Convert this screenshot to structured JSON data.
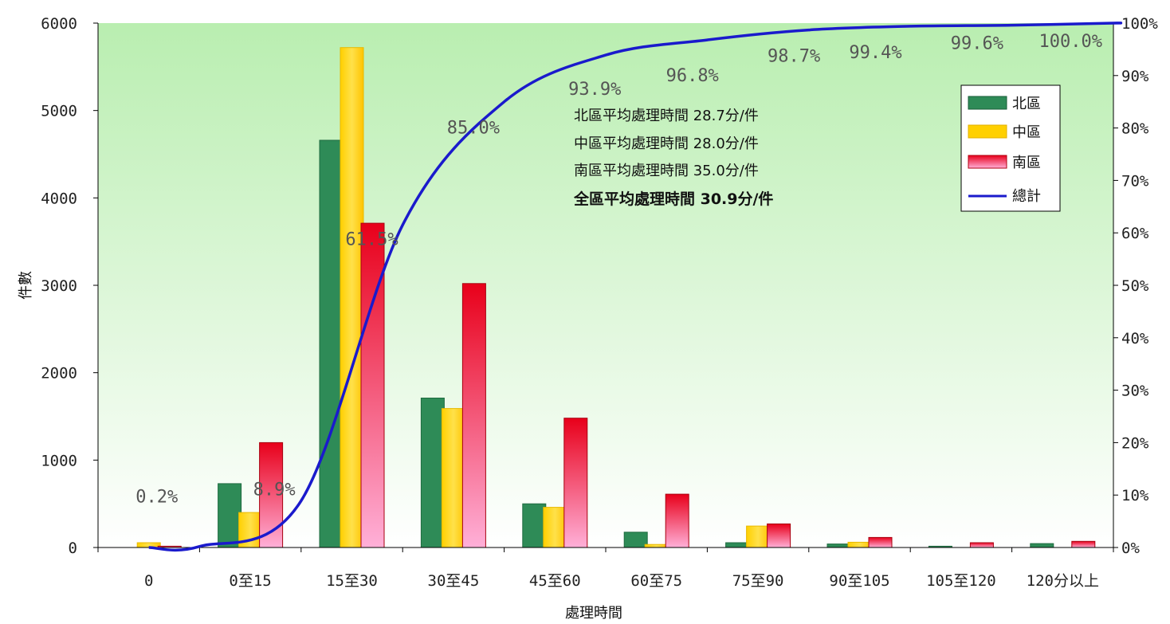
{
  "chart_data": {
    "type": "bar",
    "xlabel": "處理時間",
    "ylabel": "件數",
    "ylim": [
      0,
      6000
    ],
    "y2lim": [
      0,
      100
    ],
    "grid": false,
    "legend_position": "right",
    "categories": [
      "0",
      "0至15",
      "15至30",
      "30至45",
      "45至60",
      "60至75",
      "75至90",
      "90至105",
      "105至120",
      "120分以上"
    ],
    "yticks": [
      "0",
      "1000",
      "2000",
      "3000",
      "4000",
      "5000",
      "6000"
    ],
    "y2ticks": [
      "0%",
      "10%",
      "20%",
      "30%",
      "40%",
      "50%",
      "60%",
      "70%",
      "80%",
      "90%",
      "100%"
    ],
    "series": [
      {
        "name": "北區",
        "type": "bar",
        "color": "#2e8b57",
        "values": [
          0,
          730,
          4660,
          1710,
          500,
          175,
          55,
          40,
          15,
          45
        ]
      },
      {
        "name": "中區",
        "type": "bar",
        "color": "#ffcc00",
        "values": [
          55,
          400,
          5720,
          1590,
          460,
          35,
          245,
          60,
          0,
          0
        ]
      },
      {
        "name": "南區",
        "type": "bar",
        "color": "#e8102a",
        "values": [
          15,
          1200,
          3710,
          3020,
          1480,
          610,
          270,
          115,
          55,
          70
        ]
      },
      {
        "name": "總計",
        "type": "line",
        "color": "#1a1acc",
        "axis": "right",
        "values": [
          0.2,
          8.9,
          61.5,
          85.0,
          93.9,
          96.8,
          98.7,
          99.4,
          99.6,
          100.0
        ]
      }
    ],
    "point_labels": [
      "0.2%",
      "8.9%",
      "61.5%",
      "85.0%",
      "93.9%",
      "96.8%",
      "98.7%",
      "99.4%",
      "99.6%",
      "100.0%"
    ],
    "annotations": [
      "北區平均處理時間 28.7分/件",
      "中區平均處理時間 28.0分/件",
      "南區平均處理時間 35.0分/件",
      "全區平均處理時間 30.9分/件"
    ]
  }
}
